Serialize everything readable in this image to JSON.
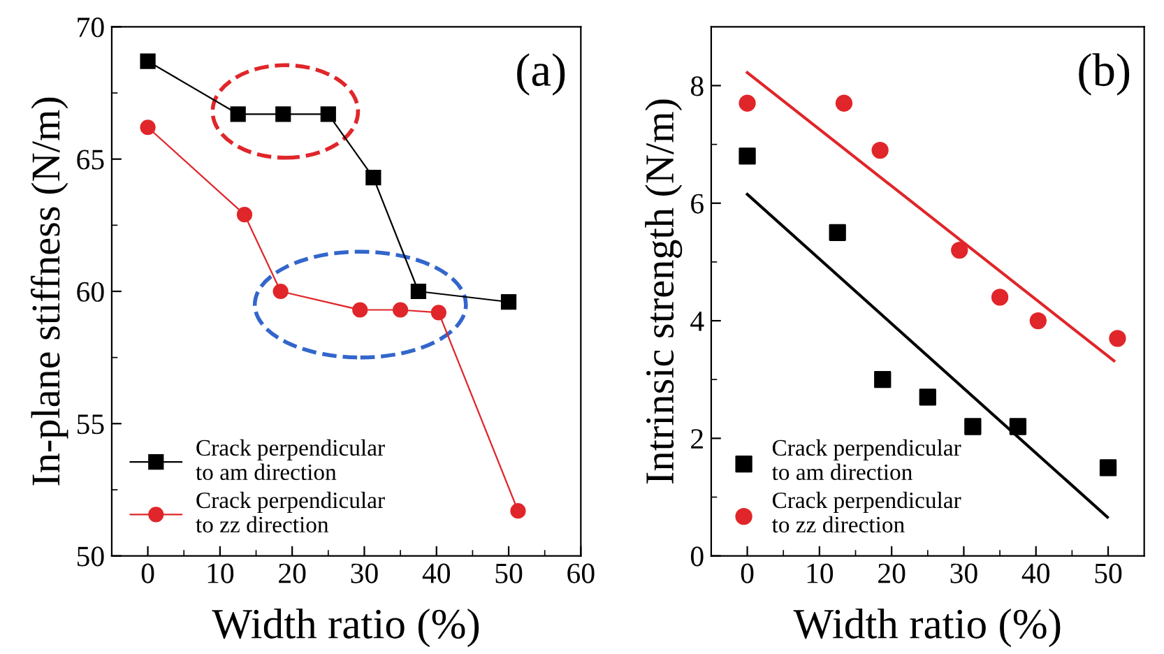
{
  "chart_data": [
    {
      "type": "line",
      "xlabel": "Width ratio (%)",
      "ylabel": "In-plane stiffness (N/m)",
      "annotations": [
        "(a)"
      ],
      "xlim": [
        -5,
        60
      ],
      "ylim": [
        50,
        70
      ],
      "xticks": [
        0,
        {
          "value": 5,
          "label": null
        },
        10,
        {
          "value": 15,
          "label": null
        },
        20,
        {
          "value": 25,
          "label": null
        },
        30,
        {
          "value": 35,
          "label": null
        },
        40,
        {
          "value": 45,
          "label": null
        },
        50,
        {
          "value": 55,
          "label": null
        },
        60
      ],
      "yticks": [
        50,
        {
          "value": 52.5,
          "label": null
        },
        55,
        {
          "value": 57.5,
          "label": null
        },
        60,
        {
          "value": 62.5,
          "label": null
        },
        65,
        {
          "value": 67.5,
          "label": null
        },
        70
      ],
      "legend": "bottom left",
      "grid": false,
      "series": [
        {
          "name": "Crack perpendicular\nto am direction",
          "color": "#000000",
          "marker": "square",
          "x": [
            0,
            12.5,
            18.75,
            25,
            31.25,
            37.5,
            50
          ],
          "values": [
            68.7,
            66.7,
            66.7,
            66.7,
            64.3,
            60.0,
            59.6
          ]
        },
        {
          "name": "Crack perpendicular\nto zz direction",
          "color": "#e0262a",
          "marker": "circle",
          "x": [
            0,
            13.4,
            18.4,
            29.4,
            35,
            40.3,
            51.3
          ],
          "values": [
            66.2,
            62.9,
            60.0,
            59.3,
            59.3,
            59.2,
            51.7
          ]
        }
      ]
    },
    {
      "type": "scatter",
      "xlabel": "Width ratio (%)",
      "ylabel": "Intrinsic strength (N/m)",
      "annotations": [
        "(b)"
      ],
      "xlim": [
        -5,
        55
      ],
      "ylim": [
        0,
        9
      ],
      "xticks": [
        0,
        {
          "value": 5,
          "label": null
        },
        10,
        {
          "value": 15,
          "label": null
        },
        20,
        {
          "value": 25,
          "label": null
        },
        30,
        {
          "value": 35,
          "label": null
        },
        40,
        {
          "value": 45,
          "label": null
        },
        50
      ],
      "yticks": [
        0,
        {
          "value": 1,
          "label": null
        },
        2,
        {
          "value": 3,
          "label": null
        },
        4,
        {
          "value": 5,
          "label": null
        },
        6,
        {
          "value": 7,
          "label": null
        },
        8
      ],
      "legend": "bottom left",
      "grid": false,
      "series": [
        {
          "name": "Crack perpendicular\nto am direction",
          "color": "#000000",
          "marker": "square",
          "x": [
            0,
            12.5,
            18.75,
            25,
            31.25,
            37.5,
            50
          ],
          "values": [
            6.8,
            5.5,
            3.0,
            2.7,
            2.2,
            2.2,
            1.5
          ]
        },
        {
          "name": "Crack perpendicular\nto zz direction",
          "color": "#e0262a",
          "marker": "circle",
          "x": [
            0,
            13.4,
            18.4,
            29.4,
            35,
            40.3,
            51.3
          ],
          "values": [
            7.7,
            7.7,
            6.9,
            5.2,
            4.4,
            4.0,
            3.7
          ]
        },
        {
          "type": "line",
          "color": "#e0262a",
          "marker": "none",
          "x": [
            0,
            50.8
          ],
          "values": [
            8.22,
            3.32
          ]
        },
        {
          "type": "line",
          "color": "#000000",
          "marker": "none",
          "x": [
            0,
            49.9
          ],
          "values": [
            6.15,
            0.66
          ]
        }
      ]
    }
  ]
}
